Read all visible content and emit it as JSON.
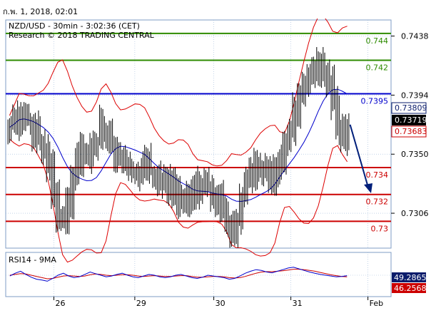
{
  "window": {
    "timestamp": "ก.พ. 1, 2018, 02:01"
  },
  "chart": {
    "title": "NZD/USD - 30min - 3:02:36 (CET)",
    "credit": "Research © 2018 TRADING CENTRAL",
    "indicator_label": "RSI14 - 9MA",
    "colors": {
      "green_level": "#2e8b00",
      "blue_level": "#0000cc",
      "red_level": "#cc0000",
      "bollinger": "#dd0000",
      "ma": "#0000cc",
      "candles": "#000000",
      "arrow": "#001f7a",
      "badge_blue": "#0a1c6b",
      "badge_black": "#000000",
      "badge_red": "#cc0000",
      "rsi_line": "#0000cc",
      "rsi_ma": "#cc0000",
      "grid": "#9db8d9"
    }
  },
  "chart_data": {
    "type": "candlestick",
    "symbol": "NZD/USD",
    "timeframe": "30min",
    "x_ticks": [
      "26",
      "29",
      "30",
      "31",
      "Feb"
    ],
    "y_ticks": [
      "0.7438",
      "0.7394",
      "0.7350",
      "0.7306"
    ],
    "ylim": [
      0.728,
      0.745
    ],
    "levels": [
      {
        "label": "0.744",
        "price": 0.744,
        "type": "green"
      },
      {
        "label": "0.742",
        "price": 0.742,
        "type": "green"
      },
      {
        "label": "0.7395",
        "price": 0.7395,
        "type": "blue"
      },
      {
        "label": "0.734",
        "price": 0.734,
        "type": "red"
      },
      {
        "label": "0.732",
        "price": 0.732,
        "type": "red"
      },
      {
        "label": "0.73",
        "price": 0.73,
        "type": "red"
      }
    ],
    "price_badges": [
      {
        "label": "0.73809",
        "price": 0.73809,
        "color": "blue"
      },
      {
        "label": "0.73719",
        "price": 0.73719,
        "color": "black"
      },
      {
        "label": "0.73683",
        "price": 0.73683,
        "color": "red"
      }
    ],
    "close_series": [
      0.737,
      0.7375,
      0.7382,
      0.7378,
      0.7372,
      0.7368,
      0.736,
      0.7354,
      0.734,
      0.732,
      0.7305,
      0.7298,
      0.7312,
      0.733,
      0.7345,
      0.735,
      0.7348,
      0.7356,
      0.7362,
      0.737,
      0.7368,
      0.736,
      0.7352,
      0.7348,
      0.7342,
      0.7338,
      0.7335,
      0.734,
      0.7345,
      0.7338,
      0.7332,
      0.7328,
      0.733,
      0.7325,
      0.7318,
      0.731,
      0.7315,
      0.732,
      0.7322,
      0.7326,
      0.733,
      0.7325,
      0.732,
      0.7318,
      0.7312,
      0.73,
      0.7292,
      0.7305,
      0.732,
      0.7332,
      0.7338,
      0.7342,
      0.734,
      0.7336,
      0.7334,
      0.7338,
      0.7345,
      0.7355,
      0.7368,
      0.738,
      0.7392,
      0.74,
      0.7408,
      0.7415,
      0.742,
      0.7412,
      0.74,
      0.7385,
      0.7372,
      0.7365,
      0.7372
    ],
    "rsi": {
      "name": "RSI14 - 9MA",
      "ylim": [
        0,
        100
      ],
      "current_labels": [
        "49.2865",
        "46.2568"
      ],
      "rsi_values": [
        48,
        55,
        60,
        52,
        45,
        40,
        38,
        35,
        42,
        50,
        55,
        48,
        44,
        46,
        52,
        58,
        54,
        50,
        46,
        48,
        52,
        55,
        50,
        46,
        44,
        48,
        52,
        50,
        46,
        44,
        46,
        50,
        52,
        48,
        44,
        42,
        45,
        50,
        48,
        46,
        44,
        40,
        42,
        48,
        55,
        60,
        64,
        62,
        58,
        56,
        60,
        64,
        68,
        70,
        66,
        62,
        58,
        55,
        52,
        50,
        48,
        46,
        47,
        49
      ],
      "ma_values": [
        50,
        52,
        54,
        53,
        50,
        47,
        44,
        41,
        42,
        45,
        48,
        49,
        48,
        47,
        48,
        51,
        53,
        52,
        50,
        49,
        50,
        51,
        51,
        50,
        48,
        47,
        48,
        49,
        48,
        47,
        47,
        48,
        49,
        49,
        47,
        45,
        45,
        46,
        47,
        47,
        46,
        44,
        43,
        44,
        47,
        51,
        55,
        58,
        59,
        59,
        60,
        61,
        63,
        65,
        65,
        64,
        62,
        60,
        57,
        54,
        51,
        49,
        47,
        46
      ]
    }
  }
}
